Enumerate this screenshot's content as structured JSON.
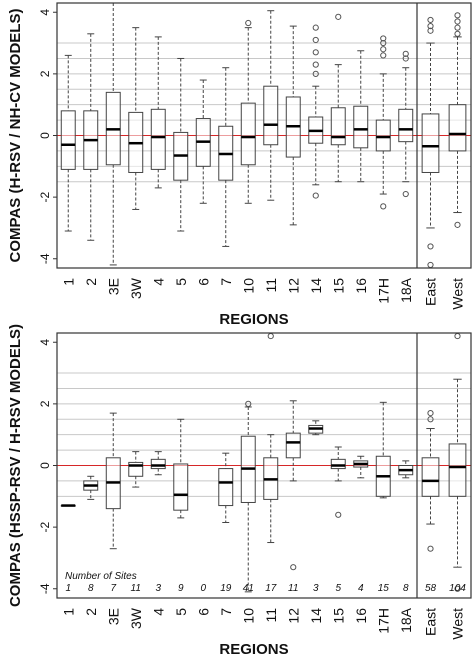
{
  "chart_data": [
    {
      "type": "boxplot",
      "ylabel": "COMPAS (H-RSV / NH-CV MODELS)",
      "xlabel": "REGIONS",
      "ylim": [
        -4.3,
        4.3
      ],
      "yticks": [
        -4,
        -2,
        0,
        2,
        4
      ],
      "grid": [
        -1.5,
        -1,
        -0.5,
        0.5,
        1,
        1.5,
        2,
        2.5,
        3
      ],
      "reference_line": 0,
      "reference_color": "#d62728",
      "categories": [
        "1",
        "2",
        "3E",
        "3W",
        "4",
        "5",
        "6",
        "7",
        "10",
        "11",
        "12",
        "14",
        "15",
        "16",
        "17H",
        "18A",
        "East",
        "West"
      ],
      "boxes": [
        {
          "min": -3.1,
          "q1": -1.1,
          "median": -0.3,
          "q3": 0.8,
          "max": 2.6,
          "outliers": []
        },
        {
          "min": -3.4,
          "q1": -1.1,
          "median": -0.15,
          "q3": 0.8,
          "max": 3.3,
          "outliers": []
        },
        {
          "min": -4.2,
          "q1": -0.95,
          "median": 0.2,
          "q3": 1.4,
          "max": 4.3,
          "outliers": []
        },
        {
          "min": -2.4,
          "q1": -1.2,
          "median": -0.25,
          "q3": 0.75,
          "max": 3.5,
          "outliers": []
        },
        {
          "min": -1.7,
          "q1": -1.1,
          "median": -0.05,
          "q3": 0.85,
          "max": 3.2,
          "outliers": []
        },
        {
          "min": -3.1,
          "q1": -1.45,
          "median": -0.65,
          "q3": 0.1,
          "max": 2.5,
          "outliers": []
        },
        {
          "min": -2.2,
          "q1": -1.0,
          "median": -0.2,
          "q3": 0.55,
          "max": 1.8,
          "outliers": []
        },
        {
          "min": -3.6,
          "q1": -1.45,
          "median": -0.6,
          "q3": 0.3,
          "max": 2.2,
          "outliers": []
        },
        {
          "min": -2.2,
          "q1": -0.95,
          "median": -0.05,
          "q3": 1.05,
          "max": 3.5,
          "outliers": [
            3.65
          ]
        },
        {
          "min": -2.1,
          "q1": -0.3,
          "median": 0.35,
          "q3": 1.6,
          "max": 4.05,
          "outliers": []
        },
        {
          "min": -2.9,
          "q1": -0.7,
          "median": 0.3,
          "q3": 1.25,
          "max": 3.55,
          "outliers": []
        },
        {
          "min": -1.6,
          "q1": -0.25,
          "median": 0.15,
          "q3": 0.6,
          "max": 1.6,
          "outliers": [
            3.5,
            3.1,
            2.7,
            2.3,
            2.0,
            -1.95
          ]
        },
        {
          "min": -1.5,
          "q1": -0.3,
          "median": -0.05,
          "q3": 0.9,
          "max": 2.3,
          "outliers": [
            3.85
          ]
        },
        {
          "min": -1.5,
          "q1": -0.4,
          "median": 0.2,
          "q3": 0.95,
          "max": 2.75,
          "outliers": []
        },
        {
          "min": -1.9,
          "q1": -0.5,
          "median": -0.05,
          "q3": 0.5,
          "max": 2.0,
          "outliers": [
            3.15,
            3.0,
            2.8,
            2.6,
            -2.3
          ]
        },
        {
          "min": -1.5,
          "q1": -0.2,
          "median": 0.2,
          "q3": 0.85,
          "max": 2.2,
          "outliers": [
            2.65,
            2.5,
            -1.9
          ]
        },
        {
          "min": -3.0,
          "q1": -1.2,
          "median": -0.35,
          "q3": 0.7,
          "max": 3.0,
          "outliers": [
            3.75,
            3.55,
            3.4,
            -3.6,
            -4.2
          ]
        },
        {
          "min": -2.5,
          "q1": -0.5,
          "median": 0.05,
          "q3": 1.0,
          "max": 3.2,
          "outliers": [
            3.9,
            3.7,
            3.5,
            3.3,
            -2.9
          ]
        }
      ],
      "group_divider_after": "18A"
    },
    {
      "type": "boxplot",
      "ylabel": "COMPAS (HSSP-RSV / H-RSV MODELS)",
      "xlabel": "REGIONS",
      "ylim": [
        -4.3,
        4.3
      ],
      "yticks": [
        -4,
        -2,
        0,
        2,
        4
      ],
      "grid": [
        -1,
        -0.5,
        0.5,
        1,
        1.5,
        2,
        2.5,
        3
      ],
      "reference_line": 0,
      "reference_color": "#d62728",
      "categories": [
        "1",
        "2",
        "3E",
        "3W",
        "4",
        "5",
        "6",
        "7",
        "10",
        "11",
        "12",
        "14",
        "15",
        "16",
        "17H",
        "18A",
        "East",
        "West"
      ],
      "boxes": [
        {
          "min": -1.3,
          "q1": -1.3,
          "median": -1.3,
          "q3": -1.3,
          "max": -1.3,
          "outliers": []
        },
        {
          "min": -1.1,
          "q1": -0.8,
          "median": -0.65,
          "q3": -0.5,
          "max": -0.35,
          "outliers": []
        },
        {
          "min": -2.7,
          "q1": -1.4,
          "median": -0.55,
          "q3": 0.25,
          "max": 1.7,
          "outliers": []
        },
        {
          "min": -0.7,
          "q1": -0.35,
          "median": 0.0,
          "q3": 0.1,
          "max": 0.45,
          "outliers": []
        },
        {
          "min": -0.3,
          "q1": -0.1,
          "median": 0.0,
          "q3": 0.2,
          "max": 0.45,
          "outliers": []
        },
        {
          "min": -1.7,
          "q1": -1.45,
          "median": -0.95,
          "q3": 0.05,
          "max": 1.5,
          "outliers": []
        },
        {
          "min": null,
          "q1": null,
          "median": null,
          "q3": null,
          "max": null,
          "outliers": []
        },
        {
          "min": -1.85,
          "q1": -1.3,
          "median": -0.55,
          "q3": -0.1,
          "max": 0.4,
          "outliers": []
        },
        {
          "min": -4.1,
          "q1": -1.2,
          "median": -0.1,
          "q3": 0.95,
          "max": 1.9,
          "outliers": [
            2.0
          ]
        },
        {
          "min": -2.5,
          "q1": -1.1,
          "median": -0.45,
          "q3": 0.25,
          "max": 1.0,
          "outliers": [
            4.2
          ]
        },
        {
          "min": -0.5,
          "q1": 0.25,
          "median": 0.75,
          "q3": 1.05,
          "max": 2.1,
          "outliers": [
            -3.3
          ]
        },
        {
          "min": 1.0,
          "q1": 1.05,
          "median": 1.2,
          "q3": 1.3,
          "max": 1.45,
          "outliers": []
        },
        {
          "min": -0.5,
          "q1": -0.1,
          "median": 0.0,
          "q3": 0.2,
          "max": 0.6,
          "outliers": [
            -1.6
          ]
        },
        {
          "min": -0.4,
          "q1": -0.05,
          "median": 0.05,
          "q3": 0.15,
          "max": 0.3,
          "outliers": []
        },
        {
          "min": -1.05,
          "q1": -1.0,
          "median": -0.35,
          "q3": 0.3,
          "max": 2.05,
          "outliers": []
        },
        {
          "min": -0.4,
          "q1": -0.3,
          "median": -0.15,
          "q3": 0.0,
          "max": 0.15,
          "outliers": []
        },
        {
          "min": -1.9,
          "q1": -1.0,
          "median": -0.5,
          "q3": 0.25,
          "max": 1.2,
          "outliers": [
            1.7,
            1.5,
            -2.7
          ]
        },
        {
          "min": -3.3,
          "q1": -1.0,
          "median": -0.05,
          "q3": 0.7,
          "max": 2.8,
          "outliers": [
            4.2,
            -4.0
          ]
        }
      ],
      "sites_label": "Number of Sites",
      "sites": [
        "1",
        "8",
        "7",
        "11",
        "3",
        "9",
        "0",
        "19",
        "41",
        "17",
        "11",
        "3",
        "5",
        "4",
        "15",
        "8",
        "58",
        "104"
      ],
      "group_divider_after": "18A"
    }
  ]
}
